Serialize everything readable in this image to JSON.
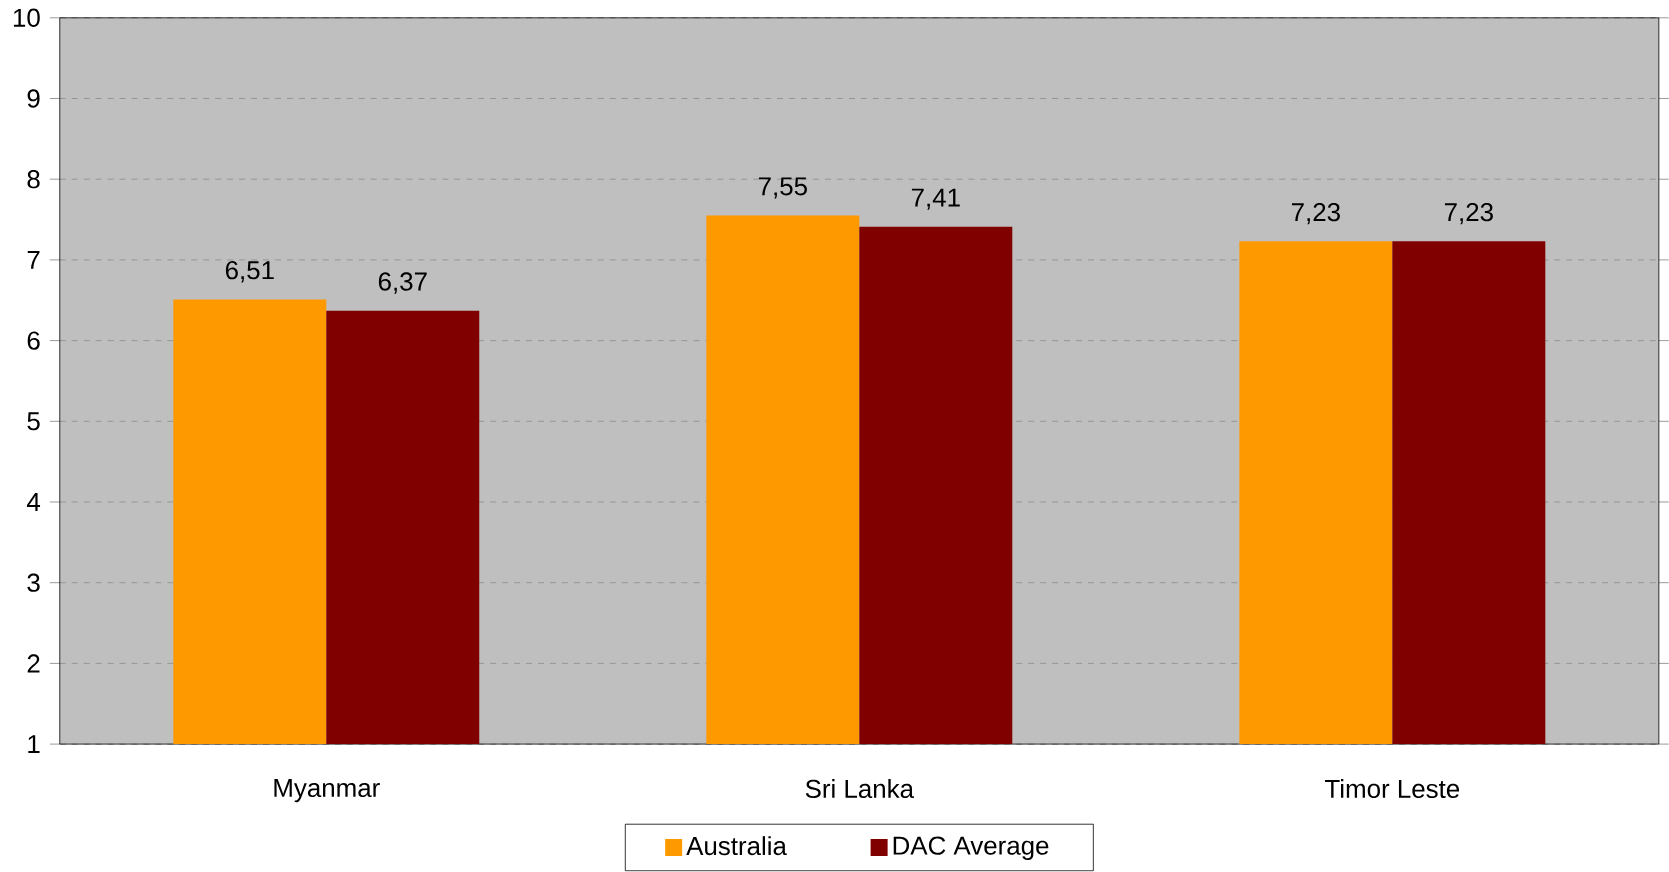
{
  "chart_data": {
    "type": "bar",
    "categories": [
      "Myanmar",
      "Sri Lanka",
      "Timor Leste"
    ],
    "series": [
      {
        "name": "Australia",
        "color": "#ff9900",
        "values": [
          6.51,
          7.55,
          7.23
        ],
        "value_labels": [
          "6,51",
          "7,55",
          "7,23"
        ]
      },
      {
        "name": "DAC Average",
        "color": "#800000",
        "values": [
          6.37,
          7.41,
          7.23
        ],
        "value_labels": [
          "6,37",
          "7,41",
          "7,23"
        ]
      }
    ],
    "ylim": [
      1,
      10
    ],
    "yticks": [
      1,
      2,
      3,
      4,
      5,
      6,
      7,
      8,
      9,
      10
    ],
    "grid": "y",
    "legend": "bottom"
  }
}
